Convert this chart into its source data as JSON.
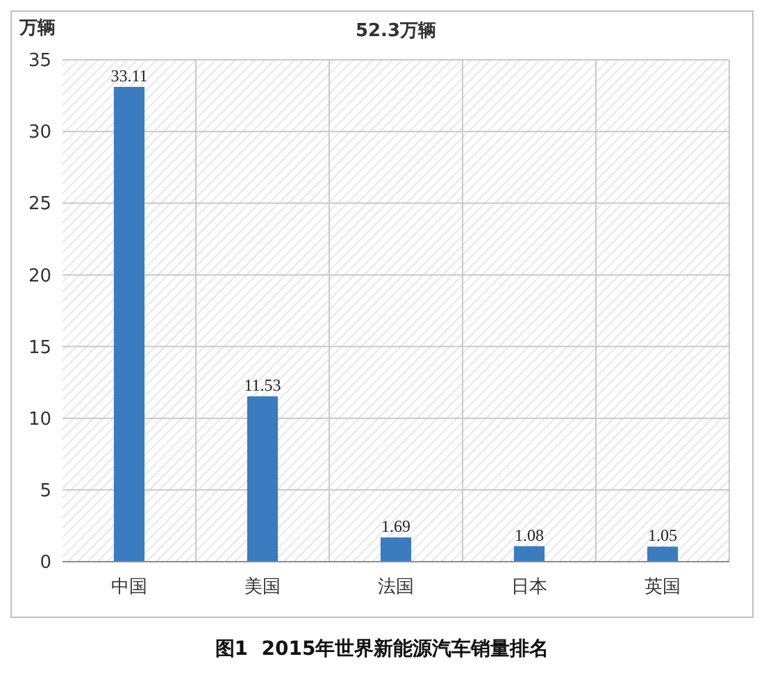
{
  "chart_data": {
    "type": "bar",
    "title": "52.3万辆",
    "ylabel": "万辆",
    "categories": [
      "中国",
      "美国",
      "法国",
      "日本",
      "英国"
    ],
    "values": [
      33.11,
      11.53,
      1.69,
      1.08,
      1.05
    ],
    "color": "#3b7bc0",
    "ylim": [
      0,
      35
    ],
    "yticks": [
      0,
      5,
      10,
      15,
      20,
      25,
      30,
      35
    ],
    "grid": true,
    "data_labels": true,
    "annotations": [
      "图1  2015年世界新能源汽车销量排名"
    ]
  }
}
